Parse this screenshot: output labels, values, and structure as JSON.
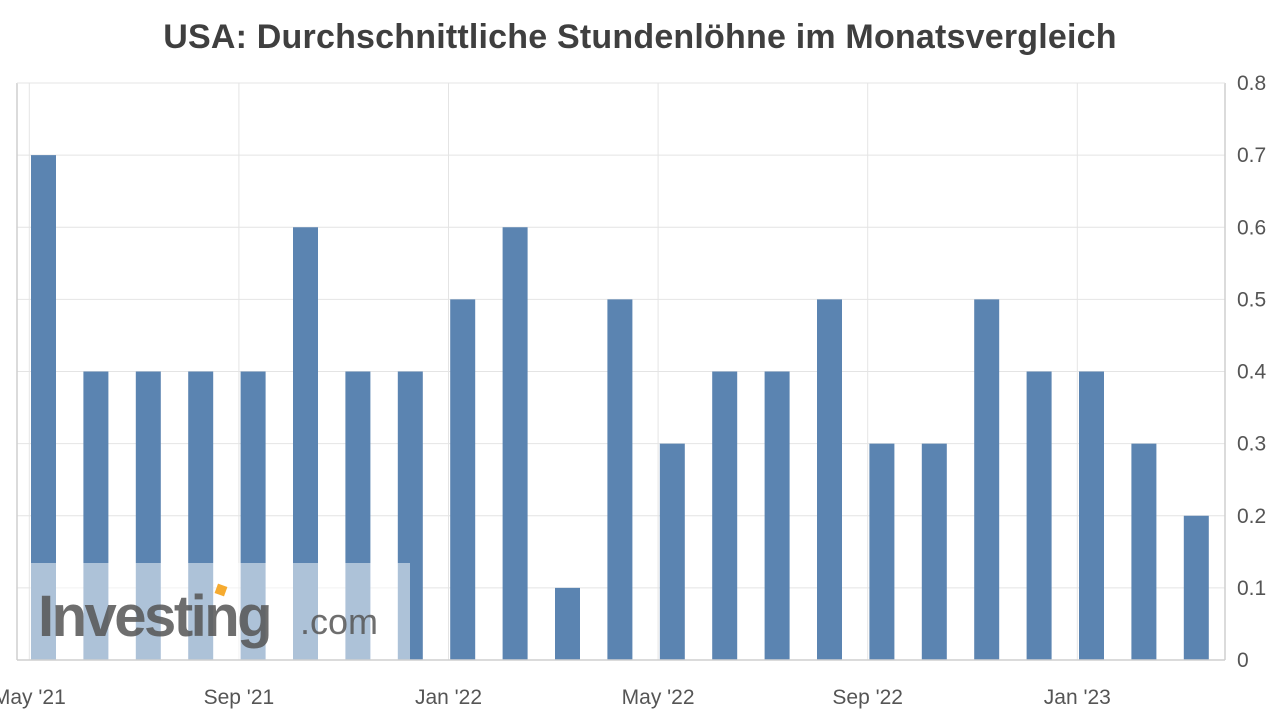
{
  "chart_data": {
    "type": "bar",
    "title": "USA: Durchschnittliche Stundenlöhne im Monatsvergleich",
    "xlabel": "",
    "ylabel": "",
    "ylim": [
      0,
      0.8
    ],
    "y_ticks": [
      "0",
      "0.1",
      "0.2",
      "0.3",
      "0.4",
      "0.5",
      "0.6",
      "0.7",
      "0.8"
    ],
    "y_axis_side": "right",
    "grid": true,
    "categories": [
      "May '21",
      "Jun '21",
      "Jul '21",
      "Aug '21",
      "Sep '21",
      "Oct '21",
      "Nov '21",
      "Dec '21",
      "Jan '22",
      "Feb '22",
      "Mar '22",
      "Apr '22",
      "May '22",
      "Jun '22",
      "Jul '22",
      "Aug '22",
      "Sep '22",
      "Oct '22",
      "Nov '22",
      "Dec '22",
      "Jan '23",
      "Feb '23",
      "Mar '23"
    ],
    "values": [
      0.7,
      0.4,
      0.4,
      0.4,
      0.4,
      0.6,
      0.4,
      0.4,
      0.5,
      0.6,
      0.1,
      0.5,
      0.3,
      0.4,
      0.4,
      0.5,
      0.3,
      0.3,
      0.5,
      0.4,
      0.4,
      0.3,
      0.2
    ],
    "x_tick_labels": [
      "May '21",
      "Sep '21",
      "Jan '22",
      "May '22",
      "Sep '22",
      "Jan '23"
    ],
    "bar_color": "#5b84b1"
  },
  "watermark": {
    "word": "Investing",
    "suffix": ".com"
  }
}
